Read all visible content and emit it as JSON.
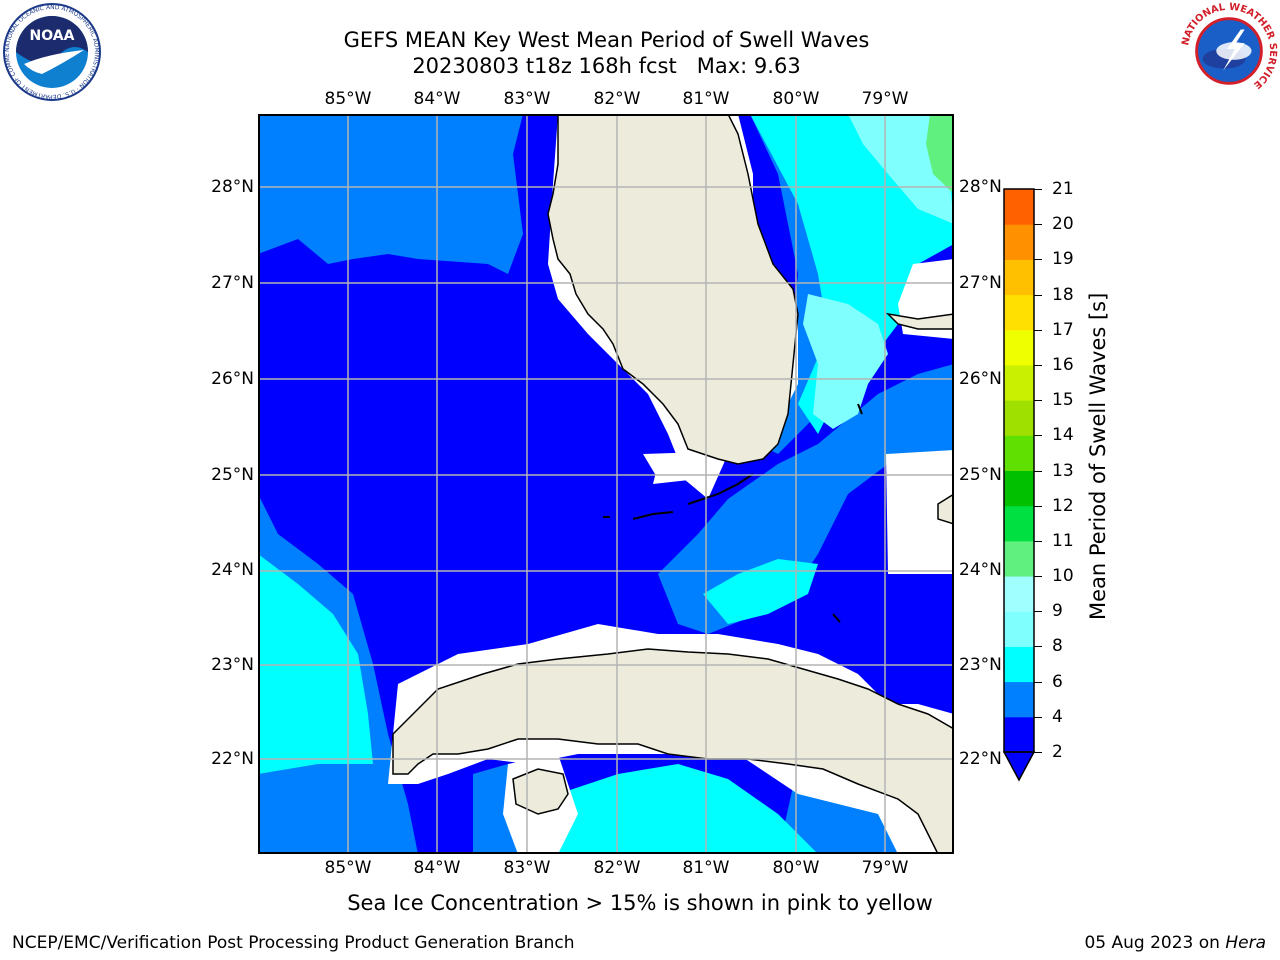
{
  "title": {
    "line1": "GEFS MEAN Key West Mean Period of Swell Waves",
    "line2": "20230803 t18z 168h fcst",
    "max_label": "Max: 9.63"
  },
  "logos": {
    "left": {
      "text": "NOAA",
      "ring_text": "NATIONAL OCEANIC AND ATMOSPHERIC ADMINISTRATION · U.S. DEPARTMENT OF COMMERCE",
      "icon": "noaa-logo-icon"
    },
    "right": {
      "ring_text": "NATIONAL WEATHER SERVICE",
      "icon": "nws-logo-icon"
    }
  },
  "map": {
    "lon_ticks": [
      "85°W",
      "84°W",
      "83°W",
      "82°W",
      "81°W",
      "80°W",
      "79°W"
    ],
    "lat_ticks": [
      "28°N",
      "27°N",
      "26°N",
      "25°N",
      "24°N",
      "23°N",
      "22°N"
    ],
    "note": "Sea Ice Concentration > 15% is shown in pink to yellow"
  },
  "colorbar": {
    "label": "Mean Period of Swell Waves [s]",
    "ticks": [
      "2",
      "4",
      "6",
      "8",
      "9",
      "10",
      "11",
      "12",
      "13",
      "14",
      "15",
      "16",
      "17",
      "18",
      "19",
      "20",
      "21"
    ],
    "colors": [
      "#0000ff",
      "#0080ff",
      "#00ffff",
      "#80ffff",
      "#a0ffff",
      "#60f080",
      "#00e040",
      "#00c000",
      "#60e000",
      "#a0e000",
      "#c8f000",
      "#f0ff00",
      "#ffe000",
      "#ffc000",
      "#ff9000",
      "#ff6000",
      "#ff3000",
      "#ff0000"
    ]
  },
  "footer": {
    "left": "NCEP/EMC/Verification Post Processing Product Generation Branch",
    "right_date": "05 Aug 2023 on ",
    "right_host": "Hera"
  }
}
